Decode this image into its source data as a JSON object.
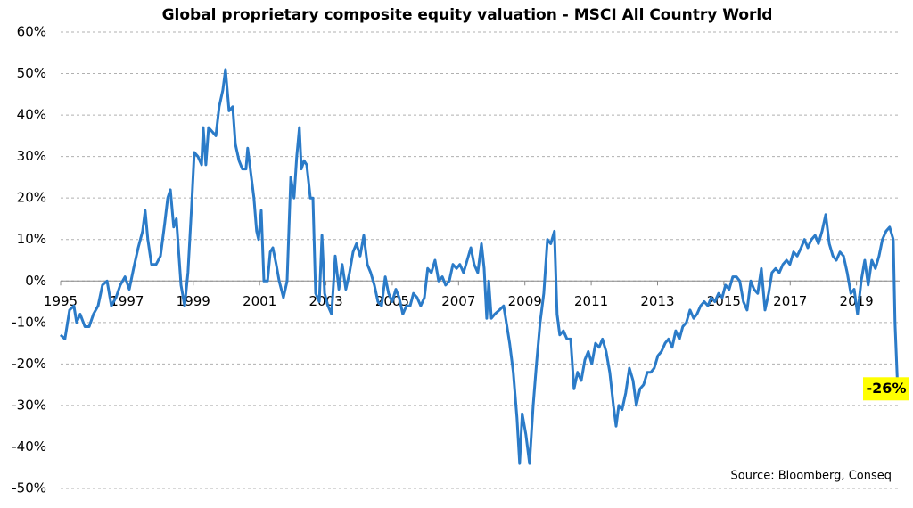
{
  "chart_data": {
    "type": "line",
    "title": "Global proprietary composite equity valuation - MSCI All Country World",
    "source": "Source: Bloomberg, Conseq",
    "color": "#2b7bc8",
    "grid": true,
    "xlim": [
      1995,
      2020.3
    ],
    "xticks": [
      1995,
      1997,
      1999,
      2001,
      2003,
      2005,
      2007,
      2009,
      2011,
      2013,
      2015,
      2017,
      2019
    ],
    "ylim": [
      -50,
      60
    ],
    "yticks": [
      {
        "value": -50,
        "label": "-50%"
      },
      {
        "value": -40,
        "label": "-40%"
      },
      {
        "value": -30,
        "label": "-30%"
      },
      {
        "value": -20,
        "label": "-20%"
      },
      {
        "value": -10,
        "label": "-10%"
      },
      {
        "value": 0,
        "label": "0%"
      },
      {
        "value": 10,
        "label": "10%"
      },
      {
        "value": 20,
        "label": "20%"
      },
      {
        "value": 30,
        "label": "30%"
      },
      {
        "value": 40,
        "label": "40%"
      },
      {
        "value": 50,
        "label": "50%"
      },
      {
        "value": 60,
        "label": "60%"
      }
    ],
    "annotation": {
      "text": "-26%",
      "value": -26
    },
    "x": [
      1995.0,
      1995.13,
      1995.27,
      1995.4,
      1995.48,
      1995.59,
      1995.73,
      1995.86,
      1995.99,
      1996.13,
      1996.26,
      1996.4,
      1996.53,
      1996.67,
      1996.8,
      1996.94,
      1997.07,
      1997.2,
      1997.34,
      1997.47,
      1997.55,
      1997.63,
      1997.74,
      1997.88,
      1998.01,
      1998.14,
      1998.23,
      1998.31,
      1998.41,
      1998.49,
      1998.63,
      1998.74,
      1998.84,
      1998.95,
      1999.03,
      1999.14,
      1999.25,
      1999.3,
      1999.38,
      1999.46,
      1999.57,
      1999.68,
      1999.78,
      1999.89,
      1999.97,
      2000.08,
      2000.19,
      2000.27,
      2000.38,
      2000.48,
      2000.59,
      2000.64,
      2000.75,
      2000.83,
      2000.91,
      2000.97,
      2001.05,
      2001.13,
      2001.24,
      2001.32,
      2001.4,
      2001.5,
      2001.59,
      2001.72,
      2001.83,
      2001.94,
      2002.04,
      2002.12,
      2002.2,
      2002.26,
      2002.34,
      2002.42,
      2002.53,
      2002.61,
      2002.69,
      2002.8,
      2002.88,
      2002.96,
      2003.06,
      2003.17,
      2003.28,
      2003.39,
      2003.49,
      2003.6,
      2003.71,
      2003.82,
      2003.92,
      2004.03,
      2004.14,
      2004.25,
      2004.35,
      2004.46,
      2004.57,
      2004.68,
      2004.79,
      2004.89,
      2005.0,
      2005.11,
      2005.21,
      2005.32,
      2005.43,
      2005.54,
      2005.64,
      2005.75,
      2005.86,
      2005.97,
      2006.07,
      2006.18,
      2006.29,
      2006.4,
      2006.51,
      2006.61,
      2006.72,
      2006.83,
      2006.94,
      2007.04,
      2007.15,
      2007.26,
      2007.37,
      2007.47,
      2007.58,
      2007.69,
      2007.77,
      2007.85,
      2007.91,
      2007.99,
      2008.09,
      2008.23,
      2008.36,
      2008.44,
      2008.54,
      2008.65,
      2008.76,
      2008.84,
      2008.92,
      2009.03,
      2009.14,
      2009.25,
      2009.35,
      2009.46,
      2009.57,
      2009.68,
      2009.78,
      2009.89,
      2009.97,
      2010.05,
      2010.16,
      2010.27,
      2010.38,
      2010.48,
      2010.59,
      2010.7,
      2010.81,
      2010.91,
      2011.02,
      2011.13,
      2011.24,
      2011.34,
      2011.45,
      2011.56,
      2011.67,
      2011.75,
      2011.83,
      2011.93,
      2012.04,
      2012.15,
      2012.26,
      2012.36,
      2012.47,
      2012.58,
      2012.69,
      2012.8,
      2012.9,
      2013.01,
      2013.12,
      2013.23,
      2013.33,
      2013.44,
      2013.55,
      2013.66,
      2013.76,
      2013.87,
      2013.98,
      2014.09,
      2014.19,
      2014.3,
      2014.41,
      2014.52,
      2014.62,
      2014.73,
      2014.84,
      2014.95,
      2015.05,
      2015.16,
      2015.27,
      2015.38,
      2015.48,
      2015.59,
      2015.7,
      2015.81,
      2015.91,
      2016.02,
      2016.13,
      2016.24,
      2016.35,
      2016.45,
      2016.56,
      2016.67,
      2016.78,
      2016.89,
      2016.99,
      2017.1,
      2017.21,
      2017.33,
      2017.43,
      2017.53,
      2017.64,
      2017.75,
      2017.85,
      2017.96,
      2018.07,
      2018.18,
      2018.29,
      2018.39,
      2018.5,
      2018.61,
      2018.72,
      2018.83,
      2018.93,
      2019.03,
      2019.14,
      2019.25,
      2019.35,
      2019.46,
      2019.57,
      2019.68,
      2019.78,
      2019.89,
      2020.0,
      2020.11,
      2020.16,
      2020.24
    ],
    "values": [
      -13,
      -14,
      -7,
      -6,
      -10,
      -8,
      -11,
      -11,
      -8,
      -6,
      -1,
      0,
      -6,
      -4,
      -1,
      1,
      -2,
      3,
      8,
      12,
      17,
      10,
      4,
      4,
      6,
      14,
      20,
      22,
      13,
      15,
      -1,
      -6,
      2,
      18,
      31,
      30,
      28,
      37,
      28,
      37,
      36,
      35,
      42,
      46,
      51,
      41,
      42,
      33,
      29,
      27,
      27,
      32,
      25,
      20,
      12,
      10,
      17,
      0,
      0,
      7,
      8,
      4,
      0,
      -4,
      0,
      25,
      20,
      30,
      37,
      27,
      29,
      28,
      20,
      20,
      -3,
      -5,
      11,
      -3,
      -6,
      -8,
      6,
      -2,
      4,
      -2,
      2,
      7,
      9,
      6,
      11,
      4,
      2,
      -1,
      -5,
      -6,
      1,
      -3,
      -5,
      -2,
      -4,
      -8,
      -6,
      -6,
      -3,
      -4,
      -6,
      -4,
      3,
      2,
      5,
      0,
      1,
      -1,
      0,
      4,
      3,
      4,
      2,
      5,
      8,
      4,
      2,
      9,
      3,
      -9,
      0,
      -9,
      -8,
      -7,
      -6,
      -10,
      -15,
      -22,
      -33,
      -44,
      -32,
      -37,
      -44,
      -30,
      -20,
      -10,
      -3,
      10,
      9,
      12,
      -8,
      -13,
      -12,
      -14,
      -14,
      -26,
      -22,
      -24,
      -19,
      -17,
      -20,
      -15,
      -16,
      -14,
      -17,
      -22,
      -30,
      -35,
      -30,
      -31,
      -27,
      -21,
      -24,
      -30,
      -26,
      -25,
      -22,
      -22,
      -21,
      -18,
      -17,
      -15,
      -14,
      -16,
      -12,
      -14,
      -11,
      -10,
      -7,
      -9,
      -8,
      -6,
      -5,
      -6,
      -4,
      -5,
      -3,
      -4,
      -1,
      -2,
      1,
      1,
      0,
      -5,
      -7,
      0,
      -2,
      -3,
      3,
      -7,
      -3,
      2,
      3,
      2,
      4,
      5,
      4,
      7,
      6,
      8,
      10,
      8,
      10,
      11,
      9,
      12,
      16,
      9,
      6,
      5,
      7,
      6,
      2,
      -3,
      -2,
      -8,
      0,
      5,
      -1,
      5,
      3,
      6,
      10,
      12,
      13,
      10,
      -10,
      -26
    ]
  }
}
